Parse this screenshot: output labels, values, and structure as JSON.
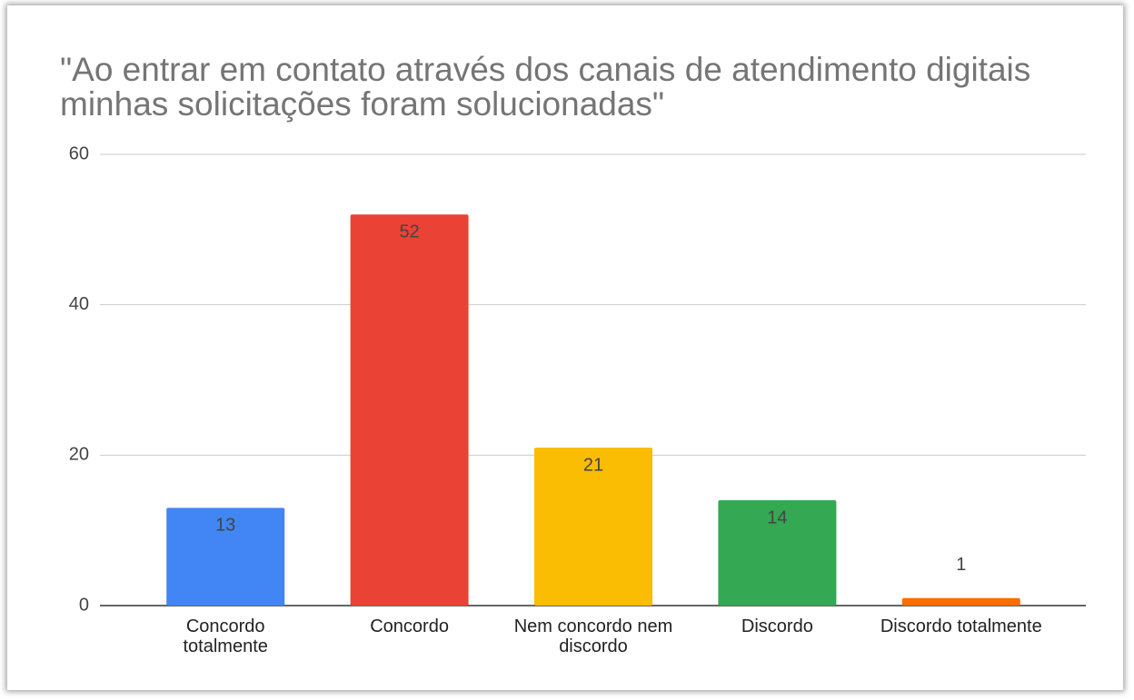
{
  "chart_data": {
    "type": "bar",
    "title": "\"Ao entrar em contato através dos canais de atendimento digitais minhas solicitações foram solucionadas\"",
    "categories": [
      "Concordo totalmente",
      "Concordo",
      "Nem concordo nem discordo",
      "Discordo",
      "Discordo totalmente"
    ],
    "values": [
      13,
      52,
      21,
      14,
      1
    ],
    "colors": [
      "#4285f4",
      "#ea4335",
      "#fbbc04",
      "#34a853",
      "#ff6d01"
    ],
    "ylim": [
      0,
      60
    ],
    "yticks": [
      0,
      20,
      40,
      60
    ],
    "grid": true
  }
}
